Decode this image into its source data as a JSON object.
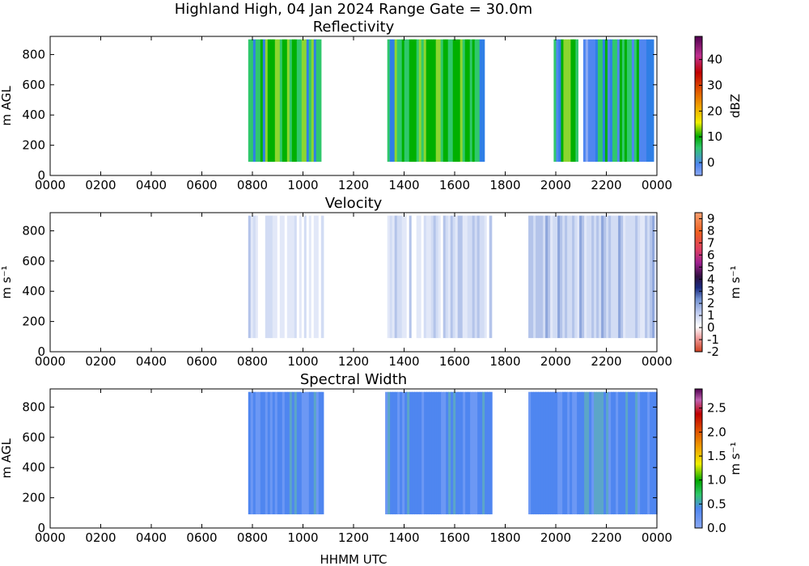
{
  "figure": {
    "title": "Highland High, 04 Jan 2024 Range Gate = 30.0m",
    "xlabel": "HHMM UTC"
  },
  "chart_data": [
    {
      "type": "heatmap",
      "title": "Reflectivity",
      "ylabel": "m AGL",
      "x_ticks": [
        "0000",
        "0200",
        "0400",
        "0600",
        "0800",
        "1000",
        "1200",
        "1400",
        "1600",
        "1800",
        "2000",
        "2200",
        "0000"
      ],
      "y_ticks": [
        "0",
        "200",
        "400",
        "600",
        "800"
      ],
      "ylim": [
        0,
        920
      ],
      "colorbar": {
        "label": "dBZ",
        "ticks": [
          "0",
          "10",
          "20",
          "30",
          "40"
        ],
        "range": [
          -5,
          49
        ]
      },
      "echo_regions": [
        {
          "start": "0750",
          "end": "1040",
          "bottom_m": 90,
          "top_m": 900,
          "dominant_dbz": 8
        },
        {
          "start": "1320",
          "end": "1710",
          "bottom_m": 90,
          "top_m": 900,
          "dominant_dbz": 8
        },
        {
          "start": "1955",
          "end": "2050",
          "bottom_m": 90,
          "top_m": 900,
          "dominant_dbz": 6
        },
        {
          "start": "2105",
          "end": "2350",
          "bottom_m": 90,
          "top_m": 900,
          "dominant_dbz": 3
        }
      ]
    },
    {
      "type": "heatmap",
      "title": "Velocity",
      "ylabel": "m s⁻¹",
      "x_ticks": [
        "0000",
        "0200",
        "0400",
        "0600",
        "0800",
        "1000",
        "1200",
        "1400",
        "1600",
        "1800",
        "2000",
        "2200",
        "0000"
      ],
      "y_ticks": [
        "0",
        "200",
        "400",
        "600",
        "800"
      ],
      "ylim": [
        0,
        920
      ],
      "colorbar": {
        "label": "m s⁻¹",
        "ticks": [
          "-2",
          "-1",
          "0",
          "1",
          "2",
          "3",
          "4",
          "5",
          "6",
          "7",
          "8",
          "9"
        ],
        "range": [
          -2,
          9.5
        ]
      },
      "echo_regions": [
        {
          "start": "0750",
          "end": "1045",
          "bottom_m": 90,
          "top_m": 900,
          "dominant_ms": 1
        },
        {
          "start": "1320",
          "end": "1725",
          "bottom_m": 90,
          "top_m": 900,
          "dominant_ms": 1
        },
        {
          "start": "1855",
          "end": "2355",
          "bottom_m": 90,
          "top_m": 900,
          "dominant_ms": 1.5
        }
      ]
    },
    {
      "type": "heatmap",
      "title": "Spectral Width",
      "ylabel": "m AGL",
      "x_ticks": [
        "0000",
        "0200",
        "0400",
        "0600",
        "0800",
        "1000",
        "1200",
        "1400",
        "1600",
        "1800",
        "2000",
        "2200",
        "0000"
      ],
      "y_ticks": [
        "0",
        "200",
        "400",
        "600",
        "800"
      ],
      "ylim": [
        0,
        920
      ],
      "colorbar": {
        "label": "m s⁻¹",
        "ticks": [
          "0.0",
          "0.5",
          "1.0",
          "1.5",
          "2.0",
          "2.5"
        ],
        "range": [
          0,
          2.9
        ]
      },
      "echo_regions": [
        {
          "start": "0750",
          "end": "1045",
          "bottom_m": 90,
          "top_m": 900,
          "dominant_ms": 0.4
        },
        {
          "start": "1315",
          "end": "1725",
          "bottom_m": 90,
          "top_m": 900,
          "dominant_ms": 0.4
        },
        {
          "start": "1855",
          "end": "2355",
          "bottom_m": 90,
          "top_m": 900,
          "dominant_ms": 0.5
        }
      ]
    }
  ]
}
